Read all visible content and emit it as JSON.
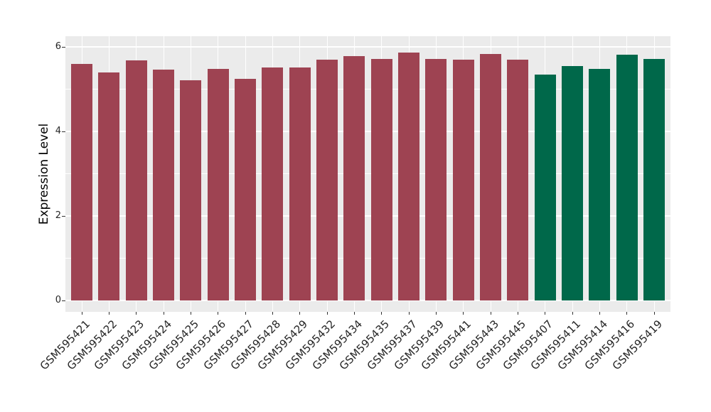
{
  "chart_data": {
    "type": "bar",
    "title": "",
    "xlabel": "",
    "ylabel": "Expression Level",
    "categories": [
      "GSM595421",
      "GSM595422",
      "GSM595423",
      "GSM595424",
      "GSM595425",
      "GSM595426",
      "GSM595427",
      "GSM595428",
      "GSM595429",
      "GSM595432",
      "GSM595434",
      "GSM595435",
      "GSM595437",
      "GSM595439",
      "GSM595441",
      "GSM595443",
      "GSM595445",
      "GSM595407",
      "GSM595411",
      "GSM595414",
      "GSM595416",
      "GSM595419"
    ],
    "values": [
      5.6,
      5.4,
      5.68,
      5.46,
      5.21,
      5.48,
      5.25,
      5.51,
      5.51,
      5.69,
      5.78,
      5.72,
      5.87,
      5.72,
      5.69,
      5.84,
      5.69,
      5.35,
      5.54,
      5.48,
      5.82,
      5.71
    ],
    "bar_colors": [
      "#9e4352",
      "#9e4352",
      "#9e4352",
      "#9e4352",
      "#9e4352",
      "#9e4352",
      "#9e4352",
      "#9e4352",
      "#9e4352",
      "#9e4352",
      "#9e4352",
      "#9e4352",
      "#9e4352",
      "#9e4352",
      "#9e4352",
      "#9e4352",
      "#9e4352",
      "#00684a",
      "#00684a",
      "#00684a",
      "#00684a",
      "#00684a"
    ],
    "colors": {
      "maroon_group": "#9e4352",
      "green_group": "#00684a",
      "panel_bg": "#ebebeb",
      "grid": "#ffffff",
      "axis_text": "#262626"
    },
    "yticks": [
      0,
      2,
      4,
      6
    ],
    "minor_yticks": [
      1,
      3,
      5
    ],
    "ylim": [
      0,
      6.2
    ],
    "grid": true,
    "legend_position": "none"
  }
}
